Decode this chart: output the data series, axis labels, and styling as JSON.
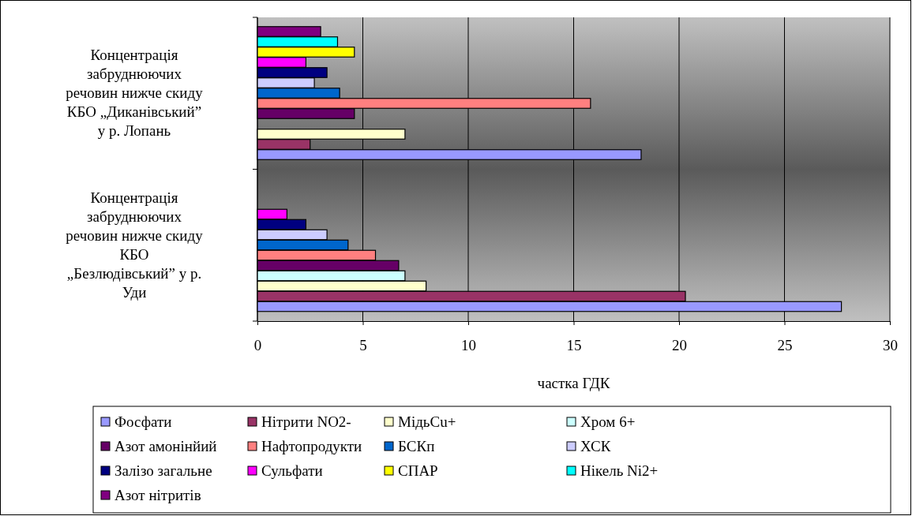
{
  "chart_data": {
    "type": "bar",
    "orientation": "horizontal",
    "xlabel": "частка ГДК",
    "categories": [
      "Концентрація забруднюючих речовин нижче скиду КБО „Диканівський” у р. Лопань",
      "Концентрація забруднюючих речовин нижче скиду КБО „Безлюдівський” у р. Уди"
    ],
    "series": [
      {
        "name": "Фосфати",
        "color": "#9999ff",
        "values": [
          18.2,
          27.7
        ]
      },
      {
        "name": "Нітрити NO2-",
        "color": "#993366",
        "values": [
          2.5,
          20.3
        ]
      },
      {
        "name": "МідьCu+",
        "color": "#ffffcc",
        "values": [
          7.0,
          8.0
        ]
      },
      {
        "name": "Хром 6+",
        "color": "#ccffff",
        "values": [
          null,
          7.0
        ]
      },
      {
        "name": "Азот амонінйий",
        "color": "#660066",
        "values": [
          4.6,
          6.7
        ]
      },
      {
        "name": "Нафтопродукти",
        "color": "#ff8080",
        "values": [
          15.8,
          5.6
        ]
      },
      {
        "name": "БСКп",
        "color": "#0066cc",
        "values": [
          3.9,
          4.3
        ]
      },
      {
        "name": "ХСК",
        "color": "#ccccff",
        "values": [
          2.7,
          3.3
        ]
      },
      {
        "name": "Залізо загальне",
        "color": "#000080",
        "values": [
          3.3,
          2.3
        ]
      },
      {
        "name": "Сульфати",
        "color": "#ff00ff",
        "values": [
          2.3,
          1.4
        ]
      },
      {
        "name": "СПАР",
        "color": "#ffff00",
        "values": [
          4.6,
          null
        ]
      },
      {
        "name": "Нікель Ni2+",
        "color": "#00ffff",
        "values": [
          3.8,
          null
        ]
      },
      {
        "name": "Азот нітритів",
        "color": "#800080",
        "values": [
          3.0,
          null
        ]
      }
    ],
    "xlim": [
      0,
      30
    ],
    "xticks": [
      0,
      5,
      10,
      15,
      20,
      25,
      30
    ],
    "grid": "x",
    "legend": "bottom"
  }
}
